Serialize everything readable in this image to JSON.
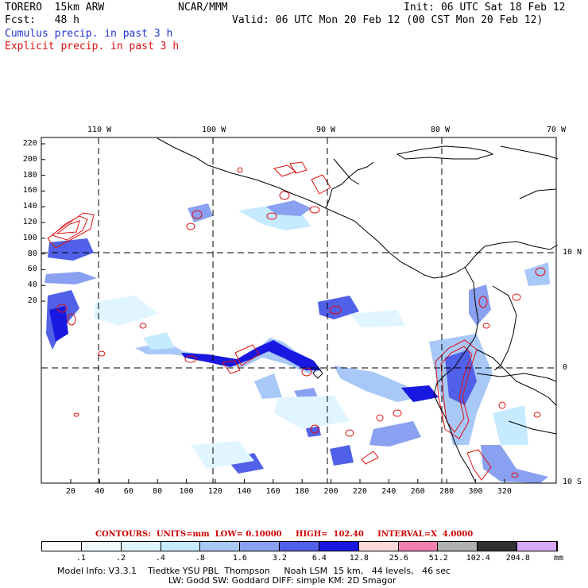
{
  "header": {
    "model": "TORERO  15km ARW",
    "org": "NCAR/MMM",
    "init": "Init: 06 UTC Sat 18 Feb 12",
    "fcst": "Fcst:   48 h",
    "valid": "Valid: 06 UTC Mon 20 Feb 12 (00 CST Mon 20 Feb 12)",
    "line_cumulus": "Cumulus precip. in past 3 h",
    "line_explicit": "Explicit precip. in past 3 h"
  },
  "map": {
    "lon_labels": [
      "110 W",
      "100 W",
      "90 W",
      "80 W",
      "70 W"
    ],
    "lat_labels": [
      "10 N",
      "0",
      "10 S"
    ],
    "y_ticks": [
      "220",
      "200",
      "180",
      "160",
      "140",
      "120",
      "100",
      "80",
      "60",
      "40",
      "20"
    ],
    "x_ticks": [
      "20",
      "40",
      "60",
      "80",
      "100",
      "120",
      "140",
      "160",
      "180",
      "200",
      "220",
      "240",
      "260",
      "280",
      "300",
      "320"
    ]
  },
  "legend": {
    "contours_text": "CONTOURS:  UNITS=mm  LOW= 0.10000     HIGH=  102.40     INTERVAL=X  4.0000",
    "thresholds": [
      ".1",
      ".2",
      ".4",
      ".8",
      "1.6",
      "3.2",
      "6.4",
      "12.8",
      "25.6",
      "51.2",
      "102.4",
      "204.8"
    ],
    "unit": "mm",
    "colors": [
      "#ffffff",
      "#f0fbff",
      "#e0f5ff",
      "#c6eaff",
      "#a8c8f8",
      "#8aa0f0",
      "#5060e8",
      "#1818e0",
      "#ffd8d8",
      "#f080b0",
      "#b0b0b0",
      "#303030",
      "#d8a8f8"
    ]
  },
  "footer": {
    "line1": "Model Info: V3.3.1    Tiedtke YSU PBL  Thompson     Noah LSM  15 km,   44 levels,   46 sec",
    "line2": "LW: Godd SW: Goddard DIFF: simple KM: 2D Smagor"
  }
}
